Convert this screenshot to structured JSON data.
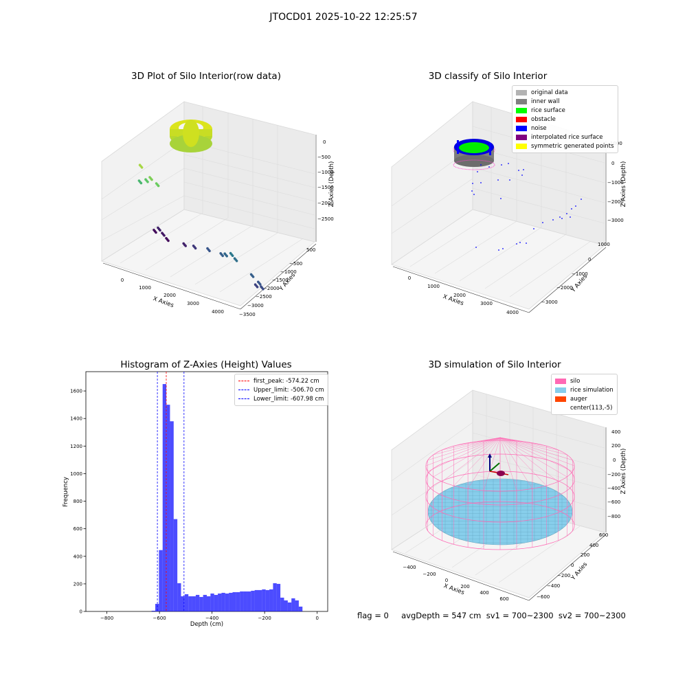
{
  "suptitle": "JTOCD01 2025-10-22 12:25:57",
  "panels": {
    "raw": {
      "title": "3D Plot of Silo Interior(row data)",
      "xlabel": "X Axies",
      "ylabel": "Y Axies",
      "zlabel": "Z Axies (Depth)",
      "xticks": [
        "0",
        "1000",
        "2000",
        "3000",
        "4000"
      ],
      "yticks": [
        "500",
        "−500",
        "−1000",
        "−1500",
        "−2000",
        "−2500",
        "−3000",
        "−3500"
      ],
      "zticks": [
        "0",
        "−500",
        "−1000",
        "−1500",
        "−2000",
        "−2500"
      ]
    },
    "classify": {
      "title": "3D classify of Silo Interior",
      "xlabel": "X Axies",
      "ylabel": "Y Axies",
      "zlabel": "Z Axies (Depth)",
      "xticks": [
        "0",
        "1000",
        "2000",
        "3000",
        "4000"
      ],
      "yticks": [
        "1000",
        "0",
        "−1000",
        "−2000",
        "−3000"
      ],
      "zticks": [
        "1000",
        "0",
        "−1000",
        "−2000",
        "−3000"
      ],
      "legend": [
        {
          "label": "original data",
          "color": "#b3b3b3"
        },
        {
          "label": "inner wall",
          "color": "#808080"
        },
        {
          "label": "rice surface",
          "color": "#00ff00"
        },
        {
          "label": "obstacle",
          "color": "#ff0000"
        },
        {
          "label": "noise",
          "color": "#0000ff"
        },
        {
          "label": "interpolated rice surface",
          "color": "#800080"
        },
        {
          "label": "symmetric generated points",
          "color": "#ffff00"
        }
      ]
    },
    "histogram": {
      "title": "Histogram of Z-Axies (Height) Values",
      "xlabel": "Depth (cm)",
      "ylabel": "Frequency",
      "legend": [
        {
          "label": "first_peak: -574.22 cm",
          "color": "#ff0000"
        },
        {
          "label": "Upper_limit: -506.70 cm",
          "color": "#0000ff"
        },
        {
          "label": "Lower_limit: -607.98 cm",
          "color": "#0000ff"
        }
      ]
    },
    "simulation": {
      "title": "3D simulation of Silo Interior",
      "xlabel": "X Axies",
      "ylabel": "Y Axies",
      "zlabel": "Z Axies (Depth)",
      "xticks": [
        "−400",
        "−200",
        "0",
        "200",
        "400",
        "600"
      ],
      "yticks": [
        "600",
        "400",
        "200",
        "0",
        "−200",
        "−400",
        "−600"
      ],
      "zticks": [
        "400",
        "200",
        "0",
        "−200",
        "−400",
        "−600",
        "−800"
      ],
      "legend": [
        {
          "label": "silo",
          "color": "#ff69b4"
        },
        {
          "label": "rice simulation",
          "color": "#87ceeb"
        },
        {
          "label": "auger",
          "color": "#ff4500"
        },
        {
          "label": "center(113,-5)",
          "color": ""
        }
      ]
    }
  },
  "footer": {
    "text": "flag = 0     avgDepth = 547 cm  sv1 = 700~2300  sv2 = 700~2300"
  },
  "chart_data": [
    {
      "type": "scatter",
      "title": "3D Plot of Silo Interior(row data)",
      "xlabel": "X Axies",
      "ylabel": "Y Axies",
      "zlabel": "Z Axies (Depth)",
      "xlim": [
        -600,
        4400
      ],
      "ylim": [
        -3500,
        700
      ],
      "zlim": [
        -2900,
        100
      ],
      "colormap": "viridis",
      "series": [
        {
          "points": [
            [
              3800,
              -2300,
              -2200
            ],
            [
              3750,
              -2200,
              -2100
            ],
            [
              3700,
              -2100,
              -2300
            ],
            [
              3600,
              -2000,
              -2000
            ],
            [
              3200,
              -1600,
              -1800
            ],
            [
              3100,
              -1500,
              -1700
            ],
            [
              3000,
              -1300,
              -1900
            ],
            [
              2900,
              -1200,
              -2000
            ],
            [
              2500,
              -1000,
              -2100
            ],
            [
              2200,
              -600,
              -2400
            ],
            [
              2000,
              -300,
              -2600
            ],
            [
              1500,
              0,
              -2800
            ],
            [
              1400,
              100,
              -2700
            ],
            [
              1300,
              200,
              -2600
            ],
            [
              1200,
              300,
              -2800
            ],
            [
              700,
              -200,
              -500
            ],
            [
              600,
              -100,
              -700
            ],
            [
              400,
              0,
              -900
            ],
            [
              900,
              -300,
              -600
            ],
            [
              500,
              100,
              -300
            ]
          ]
        }
      ]
    },
    {
      "type": "scatter",
      "title": "3D classify of Silo Interior",
      "xlabel": "X Axies",
      "ylabel": "Y Axies",
      "zlabel": "Z Axies (Depth)",
      "xlim": [
        -600,
        4400
      ],
      "ylim": [
        -3500,
        1200
      ],
      "zlim": [
        -3500,
        1200
      ],
      "legend_position": "top-right"
    },
    {
      "type": "bar",
      "title": "Histogram of Z-Axies (Height) Values",
      "xlabel": "Depth (cm)",
      "ylabel": "Frequency",
      "xlim": [
        -880,
        40
      ],
      "ylim": [
        0,
        1740
      ],
      "bin_width": 14,
      "bins": [
        [
          -630,
          5
        ],
        [
          -616,
          55
        ],
        [
          -602,
          445
        ],
        [
          -588,
          1650
        ],
        [
          -574,
          1500
        ],
        [
          -560,
          1380
        ],
        [
          -546,
          670
        ],
        [
          -532,
          205
        ],
        [
          -518,
          110
        ],
        [
          -504,
          125
        ],
        [
          -490,
          110
        ],
        [
          -476,
          110
        ],
        [
          -462,
          120
        ],
        [
          -448,
          105
        ],
        [
          -434,
          120
        ],
        [
          -420,
          110
        ],
        [
          -406,
          130
        ],
        [
          -392,
          120
        ],
        [
          -378,
          130
        ],
        [
          -364,
          135
        ],
        [
          -350,
          130
        ],
        [
          -336,
          135
        ],
        [
          -322,
          140
        ],
        [
          -308,
          140
        ],
        [
          -294,
          145
        ],
        [
          -280,
          145
        ],
        [
          -266,
          145
        ],
        [
          -252,
          150
        ],
        [
          -238,
          155
        ],
        [
          -224,
          155
        ],
        [
          -210,
          160
        ],
        [
          -196,
          155
        ],
        [
          -182,
          160
        ],
        [
          -168,
          205
        ],
        [
          -154,
          200
        ],
        [
          -140,
          100
        ],
        [
          -126,
          80
        ],
        [
          -112,
          65
        ],
        [
          -98,
          95
        ],
        [
          -84,
          80
        ],
        [
          -70,
          35
        ]
      ],
      "vlines": [
        {
          "label": "first_peak: -574.22 cm",
          "x": -574.22,
          "color": "#ff0000"
        },
        {
          "label": "Upper_limit: -506.70 cm",
          "x": -506.7,
          "color": "#0000ff"
        },
        {
          "label": "Lower_limit: -607.98 cm",
          "x": -607.98,
          "color": "#0000ff"
        }
      ],
      "xticks": [
        -800,
        -600,
        -400,
        -200,
        0
      ],
      "yticks": [
        0,
        200,
        400,
        600,
        800,
        1000,
        1200,
        1400,
        1600
      ],
      "legend_position": "top-right"
    },
    {
      "type": "scatter",
      "title": "3D simulation of Silo Interior",
      "xlabel": "X Axies",
      "ylabel": "Y Axies",
      "zlabel": "Z Axies (Depth)",
      "xlim": [
        -550,
        750
      ],
      "ylim": [
        -700,
        700
      ],
      "zlim": [
        -900,
        450
      ],
      "silo_center": [
        113,
        -5
      ],
      "rice_surface_depth": -547,
      "legend_position": "top-right"
    }
  ]
}
